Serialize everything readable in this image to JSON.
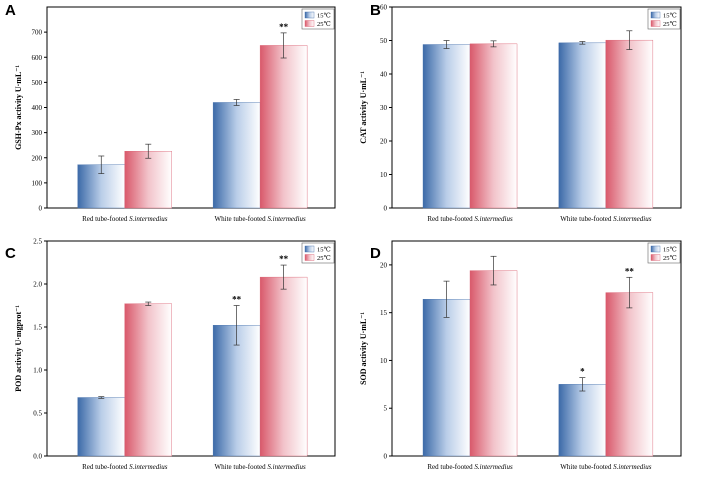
{
  "chart_data": [
    {
      "panel": "A",
      "type": "bar",
      "ylabel": "GSH-Px activity U·mL⁻¹",
      "ylim": [
        0,
        800
      ],
      "yticks": [
        0,
        100,
        200,
        300,
        400,
        500,
        600,
        700
      ],
      "categories": [
        "Red tube-footed S.intermedius",
        "White tube-footed S.intermedius"
      ],
      "series": [
        {
          "name": "15℃",
          "values": [
            172,
            420
          ],
          "errors": [
            35,
            12
          ]
        },
        {
          "name": "25℃",
          "values": [
            226,
            647
          ],
          "errors": [
            28,
            50
          ]
        }
      ],
      "significance": [
        [
          "",
          ""
        ],
        [
          "",
          "**"
        ]
      ],
      "legend": "top-right"
    },
    {
      "panel": "B",
      "type": "bar",
      "ylabel": "CAT activity U·mL⁻¹",
      "ylim": [
        0,
        60
      ],
      "yticks": [
        0,
        10,
        20,
        30,
        40,
        50,
        60
      ],
      "categories": [
        "Red tube-footed S.intermedius",
        "White tube-footed S.intermedius"
      ],
      "series": [
        {
          "name": "15℃",
          "values": [
            48.8,
            49.3
          ],
          "errors": [
            1.2,
            0.4
          ]
        },
        {
          "name": "25℃",
          "values": [
            49.0,
            50.1
          ],
          "errors": [
            0.9,
            2.8
          ]
        }
      ],
      "significance": [
        [
          "",
          ""
        ],
        [
          "",
          ""
        ]
      ],
      "legend": "top-right"
    },
    {
      "panel": "C",
      "type": "bar",
      "ylabel": "POD activity U·mgprot⁻¹",
      "ylim": [
        0,
        2.5
      ],
      "yticks": [
        0.0,
        0.5,
        1.0,
        1.5,
        2.0,
        2.5
      ],
      "categories": [
        "Red tube-footed S.intermedius",
        "White tube-footed S.intermedius"
      ],
      "series": [
        {
          "name": "15℃",
          "values": [
            0.68,
            1.52
          ],
          "errors": [
            0.01,
            0.23
          ]
        },
        {
          "name": "25℃",
          "values": [
            1.77,
            2.08
          ],
          "errors": [
            0.02,
            0.14
          ]
        }
      ],
      "significance": [
        [
          "",
          "**"
        ],
        [
          "",
          "**"
        ]
      ],
      "legend": "top-right"
    },
    {
      "panel": "D",
      "type": "bar",
      "ylabel": "SOD activity U·mL⁻¹",
      "ylim": [
        0,
        22.5
      ],
      "yticks": [
        0,
        5,
        10,
        15,
        20
      ],
      "categories": [
        "Red tube-footed S.intermedius",
        "White tube-footed S.intermedius"
      ],
      "series": [
        {
          "name": "15℃",
          "values": [
            16.4,
            7.5
          ],
          "errors": [
            1.9,
            0.7
          ]
        },
        {
          "name": "25℃",
          "values": [
            19.4,
            17.1
          ],
          "errors": [
            1.5,
            1.6
          ]
        }
      ],
      "significance": [
        [
          "",
          "*"
        ],
        [
          "",
          "**"
        ]
      ],
      "legend": "top-right"
    }
  ],
  "colors": {
    "series_15": "#4a78b5",
    "series_25": "#e06a7a"
  }
}
